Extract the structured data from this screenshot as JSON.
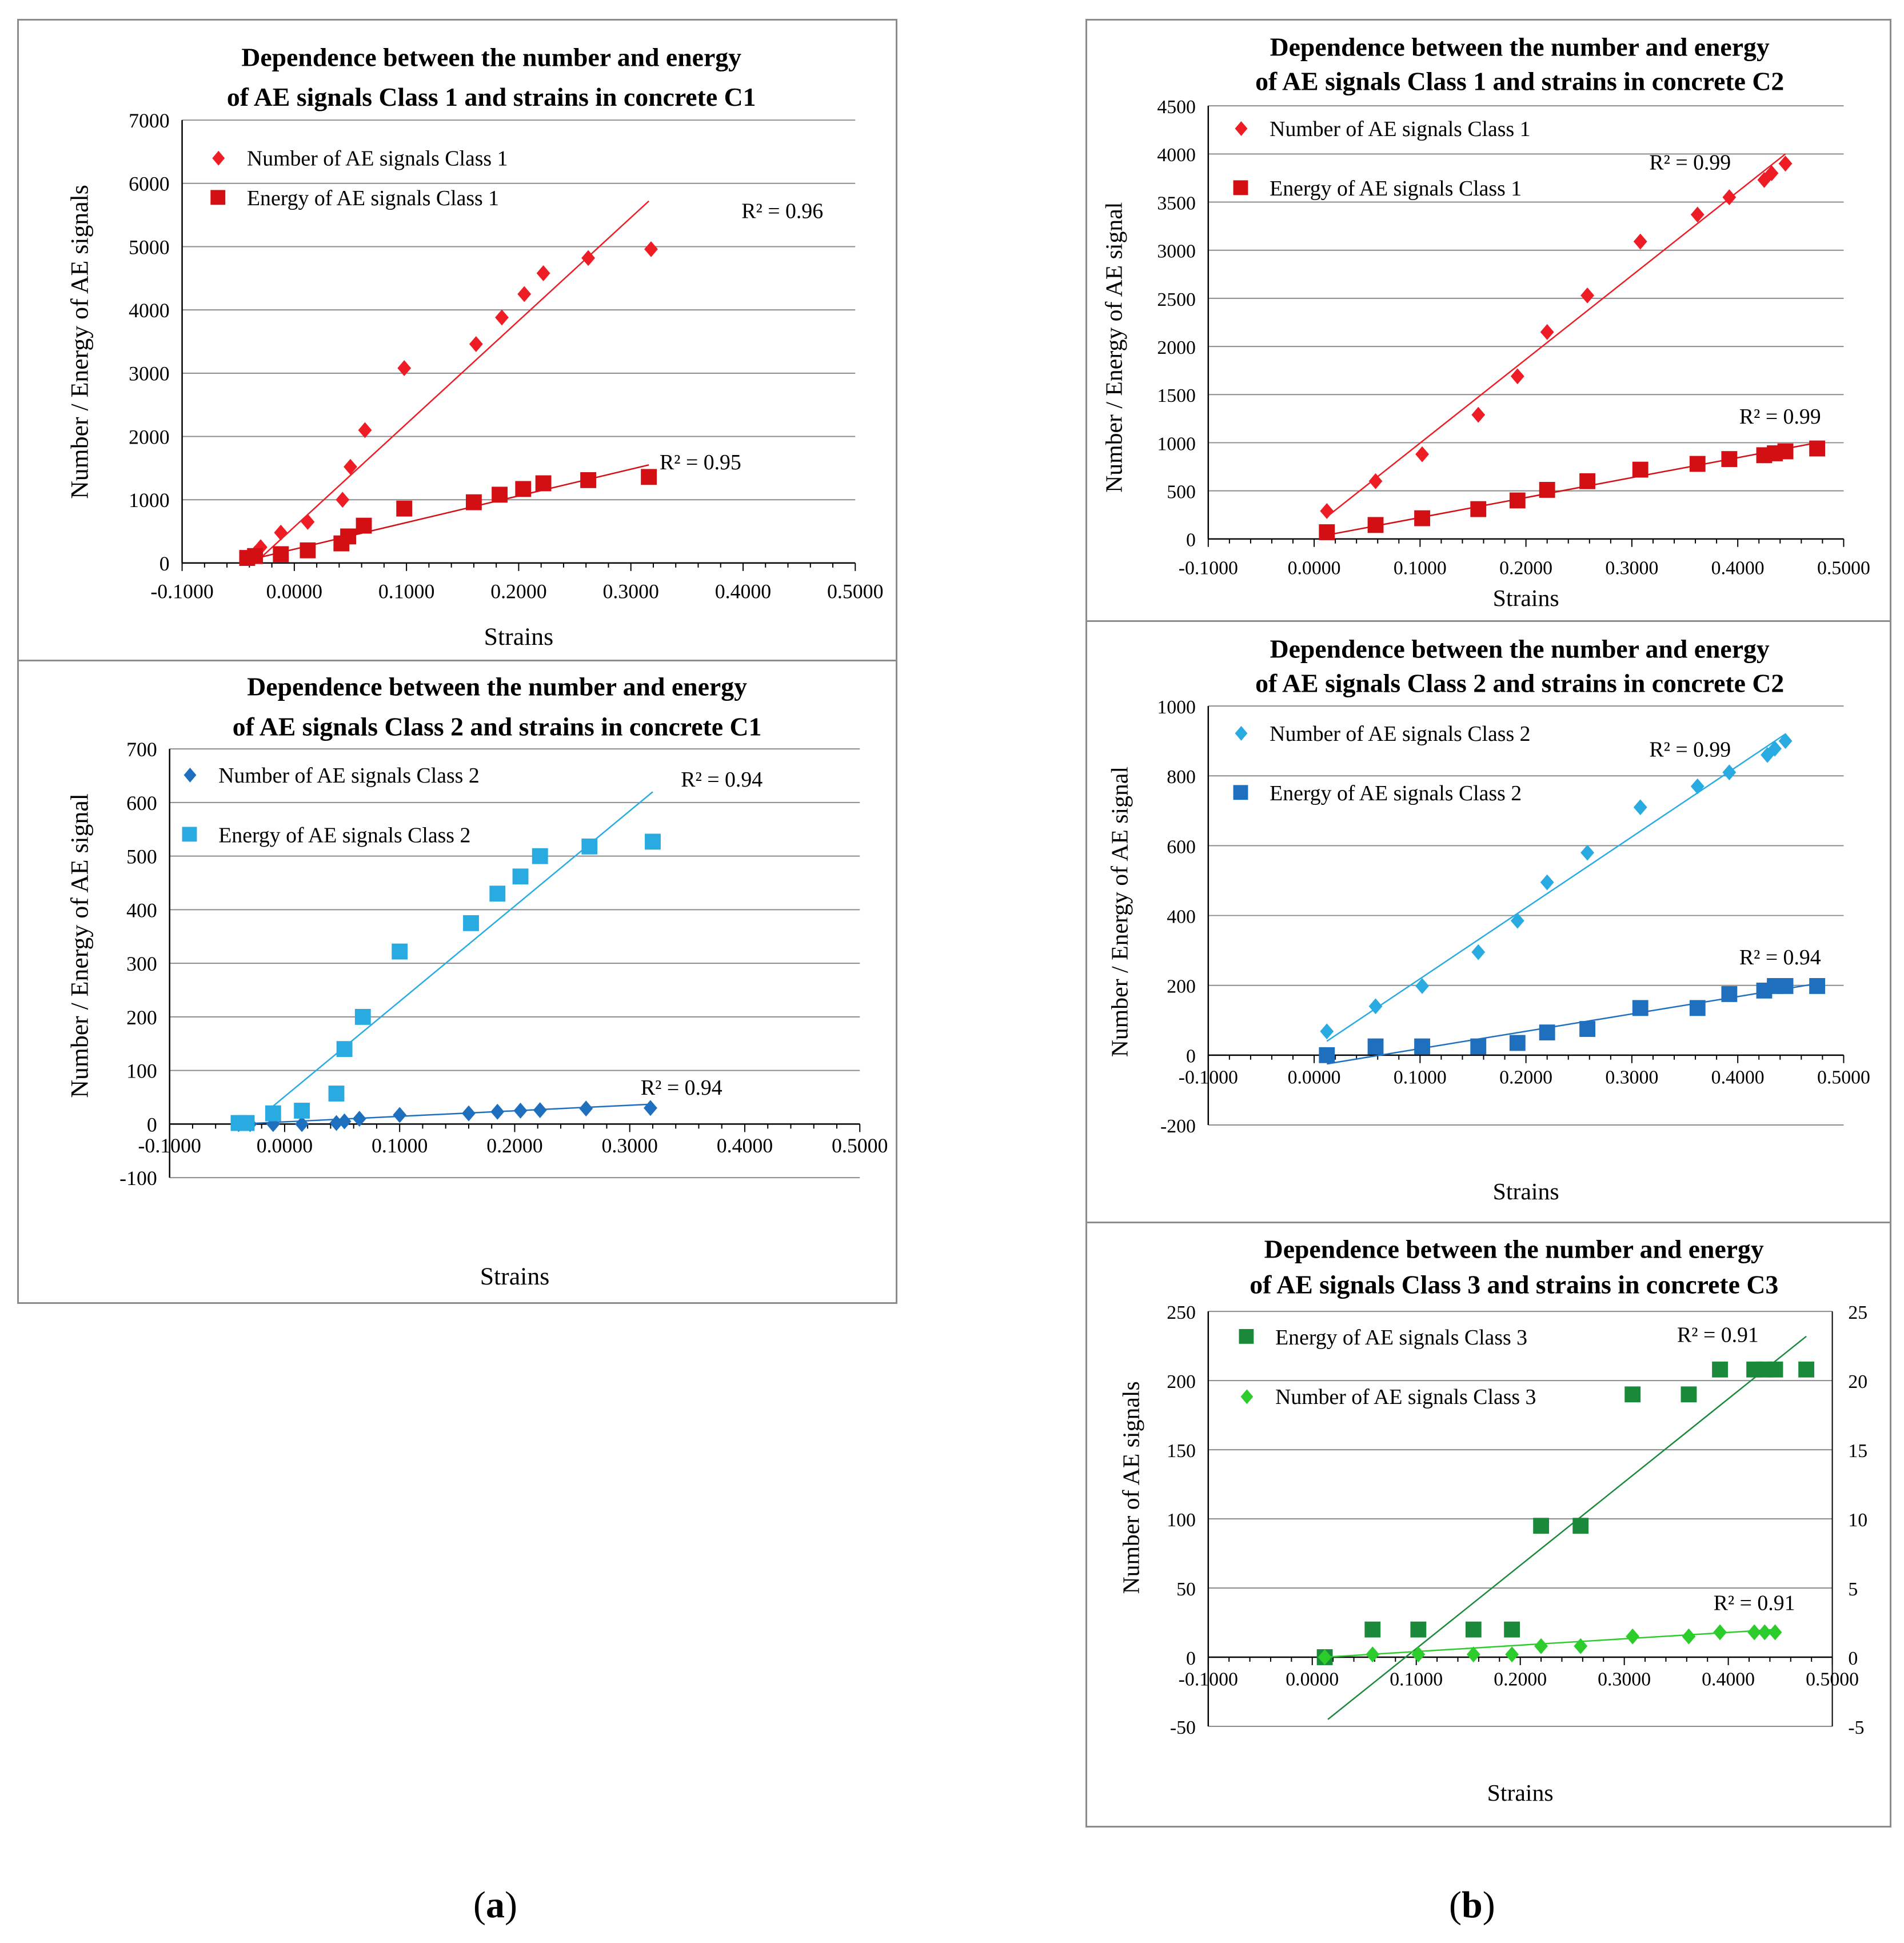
{
  "figure": {
    "caption_a": "a",
    "caption_b": "b"
  },
  "colors": {
    "red": "#ee1c25",
    "darkred": "#d40f14",
    "lightblue": "#29abe2",
    "blue": "#1f6fbf",
    "green": "#1a8a3a",
    "lightgreen": "#2dcc2d"
  },
  "chart_data": [
    {
      "id": "c1-class1",
      "type": "scatter",
      "title": [
        "Dependence between the number and energy",
        "of AE signals  Class 1 and strains in concrete C1"
      ],
      "xlabel": "Strains",
      "ylabel": "Number / Energy of AE  signals",
      "xlim": [
        -0.1,
        0.5
      ],
      "ylim": [
        0,
        7000
      ],
      "xticks": [
        "-0.1000",
        "0.0000",
        "0.1000",
        "0.2000",
        "0.3000",
        "0.4000",
        "0.5000"
      ],
      "yticks": [
        "0",
        "1000",
        "2000",
        "3000",
        "4000",
        "5000",
        "6000",
        "7000"
      ],
      "legend": "top-left",
      "series": [
        {
          "name": "Number of AE signals Class 1",
          "marker": "diamond",
          "color": "#ee1c25",
          "points": [
            [
              -0.042,
              80
            ],
            [
              -0.035,
              150
            ],
            [
              -0.03,
              250
            ],
            [
              -0.012,
              480
            ],
            [
              0.012,
              650
            ],
            [
              0.043,
              1000
            ],
            [
              0.05,
              1520
            ],
            [
              0.063,
              2100
            ],
            [
              0.098,
              3080
            ],
            [
              0.162,
              3460
            ],
            [
              0.185,
              3880
            ],
            [
              0.205,
              4250
            ],
            [
              0.222,
              4580
            ],
            [
              0.262,
              4820
            ],
            [
              0.318,
              4960
            ]
          ],
          "fit": [
            [
              -0.035,
              0
            ],
            [
              0.316,
              5720
            ]
          ],
          "r2": "R² = 0.96",
          "r2_pos": [
            0.435,
            5450
          ]
        },
        {
          "name": "Energy of AE signals Class 1",
          "marker": "square",
          "color": "#d40f14",
          "points": [
            [
              -0.042,
              80
            ],
            [
              -0.035,
              110
            ],
            [
              -0.012,
              140
            ],
            [
              0.012,
              200
            ],
            [
              0.042,
              310
            ],
            [
              0.048,
              420
            ],
            [
              0.062,
              590
            ],
            [
              0.098,
              860
            ],
            [
              0.16,
              960
            ],
            [
              0.183,
              1080
            ],
            [
              0.204,
              1170
            ],
            [
              0.222,
              1260
            ],
            [
              0.262,
              1310
            ],
            [
              0.316,
              1360
            ]
          ],
          "fit": [
            [
              -0.04,
              50
            ],
            [
              0.316,
              1550
            ]
          ],
          "r2": "R² = 0.95",
          "r2_pos": [
            0.362,
            1480
          ]
        }
      ]
    },
    {
      "id": "c1-class2",
      "type": "scatter",
      "title": [
        "Dependence between the number and energy",
        "of AE signals  Class 2 and strains in concrete C1"
      ],
      "xlabel": "Strains",
      "ylabel": "Number / Energy of AE  signal",
      "xlim": [
        -0.1,
        0.5
      ],
      "ylim": [
        -100,
        700
      ],
      "xticks": [
        "-0.1000",
        "0.0000",
        "0.1000",
        "0.2000",
        "0.3000",
        "0.4000",
        "0.5000"
      ],
      "yticks": [
        "-100",
        "0",
        "100",
        "200",
        "300",
        "400",
        "500",
        "600",
        "700"
      ],
      "legend": "top-left",
      "series": [
        {
          "name": "Number of AE signals Class 2",
          "marker": "diamond",
          "color": "#1f6fbf",
          "points": [
            [
              -0.04,
              0
            ],
            [
              -0.03,
              0
            ],
            [
              -0.01,
              0
            ],
            [
              0.015,
              0
            ],
            [
              0.045,
              2
            ],
            [
              0.052,
              5
            ],
            [
              0.065,
              10
            ],
            [
              0.1,
              17
            ],
            [
              0.16,
              20
            ],
            [
              0.185,
              23
            ],
            [
              0.205,
              25
            ],
            [
              0.222,
              26
            ],
            [
              0.262,
              29
            ],
            [
              0.318,
              30
            ]
          ],
          "fit": [
            [
              -0.04,
              0
            ],
            [
              0.318,
              37
            ]
          ],
          "r2": "R² = 0.94",
          "r2_pos": [
            0.345,
            55
          ]
        },
        {
          "name": "Energy of AE signals Class 2",
          "marker": "square",
          "color": "#29abe2",
          "points": [
            [
              -0.04,
              2
            ],
            [
              -0.033,
              2
            ],
            [
              -0.01,
              20
            ],
            [
              0.015,
              25
            ],
            [
              0.045,
              57
            ],
            [
              0.052,
              140
            ],
            [
              0.068,
              200
            ],
            [
              0.1,
              322
            ],
            [
              0.162,
              375
            ],
            [
              0.185,
              430
            ],
            [
              0.205,
              462
            ],
            [
              0.222,
              500
            ],
            [
              0.265,
              518
            ],
            [
              0.32,
              527
            ]
          ],
          "fit": [
            [
              -0.012,
              30
            ],
            [
              0.32,
              620
            ]
          ],
          "r2": "R² = 0.94",
          "r2_pos": [
            0.38,
            630
          ]
        }
      ]
    },
    {
      "id": "c2-class1",
      "type": "scatter",
      "title": [
        "Dependence between the number and energy",
        "of AE signals  Class 1 and strains in concrete C2"
      ],
      "xlabel": "Strains",
      "ylabel": "Number / Energy of AE  signal",
      "xlim": [
        -0.1,
        0.5
      ],
      "ylim": [
        0,
        4500
      ],
      "xticks": [
        "-0.1000",
        "0.0000",
        "0.1000",
        "0.2000",
        "0.3000",
        "0.4000",
        "0.5000"
      ],
      "yticks": [
        "0",
        "500",
        "1000",
        "1500",
        "2000",
        "2500",
        "3000",
        "3500",
        "4000",
        "4500"
      ],
      "legend": "top-left",
      "series": [
        {
          "name": "Number of AE signals Class 1",
          "marker": "diamond",
          "color": "#ee1c25",
          "points": [
            [
              0.012,
              290
            ],
            [
              0.058,
              600
            ],
            [
              0.102,
              880
            ],
            [
              0.155,
              1290
            ],
            [
              0.192,
              1690
            ],
            [
              0.22,
              2150
            ],
            [
              0.258,
              2530
            ],
            [
              0.308,
              3090
            ],
            [
              0.362,
              3370
            ],
            [
              0.392,
              3550
            ],
            [
              0.425,
              3730
            ],
            [
              0.432,
              3800
            ],
            [
              0.445,
              3900
            ]
          ],
          "fit": [
            [
              0.012,
              230
            ],
            [
              0.445,
              4000
            ]
          ],
          "r2": "R² = 0.99",
          "r2_pos": [
            0.355,
            3840
          ]
        },
        {
          "name": "Energy of AE signals Class 1",
          "marker": "square",
          "color": "#d40f14",
          "points": [
            [
              0.012,
              70
            ],
            [
              0.058,
              145
            ],
            [
              0.102,
              215
            ],
            [
              0.155,
              310
            ],
            [
              0.192,
              400
            ],
            [
              0.22,
              510
            ],
            [
              0.258,
              600
            ],
            [
              0.308,
              720
            ],
            [
              0.362,
              780
            ],
            [
              0.392,
              830
            ],
            [
              0.425,
              870
            ],
            [
              0.435,
              890
            ],
            [
              0.445,
              910
            ],
            [
              0.475,
              940
            ]
          ],
          "fit": [
            [
              0.012,
              40
            ],
            [
              0.475,
              1000
            ]
          ],
          "r2": "R² = 0.99",
          "r2_pos": [
            0.44,
            1200
          ]
        }
      ]
    },
    {
      "id": "c2-class2",
      "type": "scatter",
      "title": [
        "Dependence between the number and energy",
        "of AE signals  Class 2 and strains in concrete C2"
      ],
      "xlabel": "Strains",
      "ylabel": "Number / Energy of AE  signal",
      "xlim": [
        -0.1,
        0.5
      ],
      "ylim": [
        -200,
        1000
      ],
      "xticks": [
        "-0.1000",
        "0.0000",
        "0.1000",
        "0.2000",
        "0.3000",
        "0.4000",
        "0.5000"
      ],
      "yticks": [
        "-200",
        "0",
        "200",
        "400",
        "600",
        "800",
        "1000"
      ],
      "legend": "top-left",
      "series": [
        {
          "name": "Number of AE signals Class 2",
          "marker": "diamond",
          "color": "#29abe2",
          "points": [
            [
              0.012,
              68
            ],
            [
              0.058,
              140
            ],
            [
              0.102,
              198
            ],
            [
              0.155,
              295
            ],
            [
              0.192,
              385
            ],
            [
              0.22,
              495
            ],
            [
              0.258,
              580
            ],
            [
              0.308,
              710
            ],
            [
              0.362,
              770
            ],
            [
              0.392,
              810
            ],
            [
              0.428,
              860
            ],
            [
              0.435,
              878
            ],
            [
              0.445,
              900
            ]
          ],
          "fit": [
            [
              0.012,
              40
            ],
            [
              0.445,
              920
            ]
          ],
          "r2": "R² = 0.99",
          "r2_pos": [
            0.355,
            855
          ]
        },
        {
          "name": "Energy of AE signals Class 2",
          "marker": "square",
          "color": "#1f6fbf",
          "points": [
            [
              0.012,
              0
            ],
            [
              0.058,
              25
            ],
            [
              0.102,
              25
            ],
            [
              0.155,
              25
            ],
            [
              0.192,
              35
            ],
            [
              0.22,
              65
            ],
            [
              0.258,
              75
            ],
            [
              0.308,
              135
            ],
            [
              0.362,
              135
            ],
            [
              0.392,
              175
            ],
            [
              0.425,
              185
            ],
            [
              0.435,
              198
            ],
            [
              0.445,
              198
            ],
            [
              0.475,
              198
            ]
          ],
          "fit": [
            [
              0.012,
              -25
            ],
            [
              0.475,
              205
            ]
          ],
          "r2": "R² = 0.94",
          "r2_pos": [
            0.44,
            260
          ]
        }
      ]
    },
    {
      "id": "c3-class3",
      "type": "scatter",
      "title": [
        "Dependence between the number and energy",
        "of AE signals  Class 3 and strains in concrete C3"
      ],
      "xlabel": "Strains",
      "ylabel": "Number of AE  signals",
      "xlim": [
        -0.1,
        0.5
      ],
      "ylim": [
        -50,
        250
      ],
      "y2lim": [
        -5,
        25
      ],
      "xticks": [
        "-0.1000",
        "0.0000",
        "0.1000",
        "0.2000",
        "0.3000",
        "0.4000",
        "0.5000"
      ],
      "yticks": [
        "-50",
        "0",
        "50",
        "100",
        "150",
        "200",
        "250"
      ],
      "y2ticks": [
        "-5",
        "0",
        "5",
        "10",
        "15",
        "20",
        "25"
      ],
      "legend": "top-left",
      "series": [
        {
          "name": "Energy of AE signals Class 3",
          "marker": "square",
          "color": "#1a8a3a",
          "points": [
            [
              0.012,
              0
            ],
            [
              0.058,
              20
            ],
            [
              0.102,
              20
            ],
            [
              0.155,
              20
            ],
            [
              0.192,
              20
            ],
            [
              0.22,
              95
            ],
            [
              0.258,
              95
            ],
            [
              0.308,
              190
            ],
            [
              0.362,
              190
            ],
            [
              0.392,
              208
            ],
            [
              0.425,
              208
            ],
            [
              0.435,
              208
            ],
            [
              0.445,
              208
            ],
            [
              0.475,
              208
            ]
          ],
          "fit": [
            [
              0.015,
              -45
            ],
            [
              0.475,
              232
            ]
          ],
          "r2": "R² = 0.91",
          "r2_pos": [
            0.39,
            228
          ]
        },
        {
          "name": "Number of AE signals Class 3",
          "marker": "diamond",
          "color": "#2dcc2d",
          "points": [
            [
              0.012,
              0
            ],
            [
              0.058,
              2
            ],
            [
              0.102,
              2
            ],
            [
              0.155,
              2
            ],
            [
              0.192,
              2
            ],
            [
              0.22,
              8
            ],
            [
              0.258,
              8
            ],
            [
              0.308,
              15
            ],
            [
              0.362,
              15
            ],
            [
              0.392,
              18
            ],
            [
              0.425,
              18
            ],
            [
              0.435,
              18
            ],
            [
              0.445,
              18
            ]
          ],
          "fit": [
            [
              0.012,
              0
            ],
            [
              0.445,
              20
            ]
          ],
          "r2": "R² = 0.91",
          "r2_pos": [
            0.425,
            34
          ]
        }
      ]
    }
  ]
}
